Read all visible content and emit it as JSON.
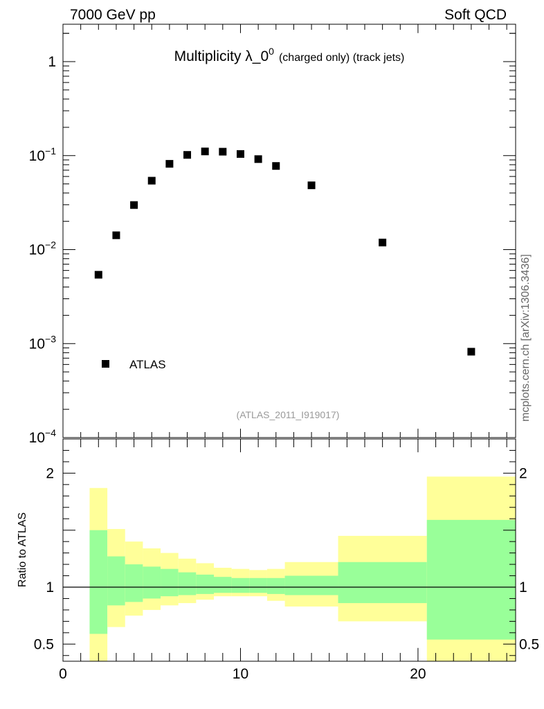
{
  "header": {
    "left": "7000 GeV pp",
    "right": "Soft QCD"
  },
  "side_label": "mcplots.cern.ch [arXiv:1306.3436]",
  "colors": {
    "inner_band": "#99ff99",
    "outer_band": "#ffff99",
    "marker": "#000000",
    "reference_text": "#999999",
    "side_text": "#666666"
  },
  "chart_data": [
    {
      "type": "scatter",
      "title_main": "Multiplicity λ_0",
      "title_sup": "0",
      "title_small": "(charged only) (track jets)",
      "reference": "(ATLAS_2011_I919017)",
      "yscale": "log",
      "ylim": [
        0.0001,
        2.5
      ],
      "xlim": [
        0,
        25.5
      ],
      "ytick_labels": [
        {
          "value": 1,
          "base": "1",
          "exp": ""
        },
        {
          "value": 0.1,
          "base": "10",
          "exp": "−1"
        },
        {
          "value": 0.01,
          "base": "10",
          "exp": "−2"
        },
        {
          "value": 0.001,
          "base": "10",
          "exp": "−3"
        },
        {
          "value": 0.0001,
          "base": "10",
          "exp": "−4"
        }
      ],
      "legend": {
        "position": "bottom-left",
        "entries": [
          "ATLAS"
        ]
      },
      "series": [
        {
          "name": "ATLAS",
          "x": [
            2,
            3,
            4,
            5,
            6,
            7,
            8,
            9,
            10,
            11,
            12,
            14,
            18,
            23
          ],
          "y": [
            0.0054,
            0.0142,
            0.0298,
            0.0541,
            0.0818,
            0.1018,
            0.1108,
            0.1101,
            0.1041,
            0.0918,
            0.0776,
            0.0483,
            0.0119,
            0.00082
          ]
        }
      ]
    },
    {
      "type": "area",
      "ylabel": "Ratio to ATLAS",
      "ylim": [
        0.35,
        2.3
      ],
      "xlim": [
        0,
        25.5
      ],
      "reference_line": 1,
      "ytick_labels": [
        {
          "value": 0.5,
          "label": "0.5"
        },
        {
          "value": 1,
          "label": "1"
        },
        {
          "value": 2,
          "label": "2"
        }
      ],
      "xtick_labels": [
        {
          "value": 0,
          "label": "0"
        },
        {
          "value": 10,
          "label": "10"
        },
        {
          "value": 20,
          "label": "20"
        }
      ],
      "bins": [
        {
          "lo": 1.5,
          "hi": 2.5,
          "inner": [
            0.59,
            1.5
          ],
          "outer": [
            0.3,
            1.87
          ]
        },
        {
          "lo": 2.5,
          "hi": 3.5,
          "inner": [
            0.84,
            1.27
          ],
          "outer": [
            0.65,
            1.51
          ]
        },
        {
          "lo": 3.5,
          "hi": 4.5,
          "inner": [
            0.87,
            1.2
          ],
          "outer": [
            0.75,
            1.4
          ]
        },
        {
          "lo": 4.5,
          "hi": 5.5,
          "inner": [
            0.9,
            1.18
          ],
          "outer": [
            0.8,
            1.34
          ]
        },
        {
          "lo": 5.5,
          "hi": 6.5,
          "inner": [
            0.92,
            1.16
          ],
          "outer": [
            0.84,
            1.3
          ]
        },
        {
          "lo": 6.5,
          "hi": 7.5,
          "inner": [
            0.93,
            1.13
          ],
          "outer": [
            0.86,
            1.25
          ]
        },
        {
          "lo": 7.5,
          "hi": 8.5,
          "inner": [
            0.94,
            1.11
          ],
          "outer": [
            0.89,
            1.21
          ]
        },
        {
          "lo": 8.5,
          "hi": 9.5,
          "inner": [
            0.95,
            1.09
          ],
          "outer": [
            0.92,
            1.17
          ]
        },
        {
          "lo": 9.5,
          "hi": 10.5,
          "inner": [
            0.95,
            1.08
          ],
          "outer": [
            0.92,
            1.16
          ]
        },
        {
          "lo": 10.5,
          "hi": 11.5,
          "inner": [
            0.95,
            1.08
          ],
          "outer": [
            0.92,
            1.15
          ]
        },
        {
          "lo": 11.5,
          "hi": 12.5,
          "inner": [
            0.94,
            1.08
          ],
          "outer": [
            0.88,
            1.16
          ]
        },
        {
          "lo": 12.5,
          "hi": 15.5,
          "inner": [
            0.93,
            1.1
          ],
          "outer": [
            0.83,
            1.22
          ]
        },
        {
          "lo": 15.5,
          "hi": 20.5,
          "inner": [
            0.86,
            1.22
          ],
          "outer": [
            0.7,
            1.45
          ]
        },
        {
          "lo": 20.5,
          "hi": 25.5,
          "inner": [
            0.54,
            1.59
          ],
          "outer": [
            0.3,
            1.97
          ]
        }
      ]
    }
  ]
}
